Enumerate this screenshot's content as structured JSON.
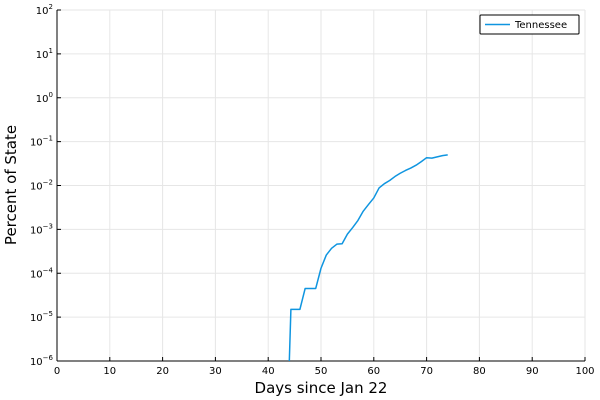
{
  "chart_data": {
    "type": "line",
    "title": "",
    "xlabel": "Days since Jan 22",
    "ylabel": "Percent of State",
    "xlim": [
      0,
      100
    ],
    "ylim": [
      1e-06,
      100
    ],
    "yscale": "log",
    "grid": true,
    "legend_position": "top-right",
    "x_ticks": [
      "0",
      "10",
      "20",
      "30",
      "40",
      "50",
      "60",
      "70",
      "80",
      "90",
      "100"
    ],
    "y_ticks": [
      {
        "base": "10",
        "exp": "2"
      },
      {
        "base": "10",
        "exp": "1"
      },
      {
        "base": "10",
        "exp": "0"
      },
      {
        "base": "10",
        "exp": "−1"
      },
      {
        "base": "10",
        "exp": "−2"
      },
      {
        "base": "10",
        "exp": "−3"
      },
      {
        "base": "10",
        "exp": "−4"
      },
      {
        "base": "10",
        "exp": "−5"
      },
      {
        "base": "10",
        "exp": "−6"
      }
    ],
    "series": [
      {
        "name": "Tennessee",
        "color": "#0f95e0",
        "x": [
          44,
          44.3,
          46,
          47,
          49,
          50,
          51,
          52,
          53,
          54,
          55,
          56,
          57,
          58,
          59,
          60,
          61,
          62,
          63,
          64,
          65,
          66,
          67,
          68,
          69,
          70,
          71,
          72,
          73,
          74
        ],
        "y": [
          1e-06,
          1.5e-05,
          1.5e-05,
          4.5e-05,
          4.5e-05,
          0.00013,
          0.00026,
          0.00037,
          0.00046,
          0.00047,
          0.00078,
          0.0011,
          0.0016,
          0.0026,
          0.0037,
          0.0052,
          0.0088,
          0.011,
          0.013,
          0.016,
          0.019,
          0.022,
          0.025,
          0.029,
          0.035,
          0.043,
          0.042,
          0.045,
          0.048,
          0.05
        ]
      }
    ]
  }
}
